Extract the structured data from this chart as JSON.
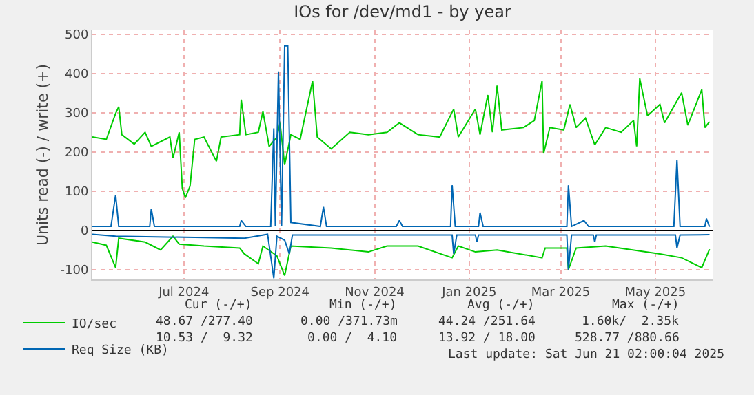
{
  "chart_data": {
    "type": "line",
    "title": "IOs for /dev/md1 - by year",
    "ylabel": "Units read (-) / write (+)",
    "xlim": [
      "2024-05-18",
      "2025-06-22"
    ],
    "xticks": [
      {
        "value": "2024-07-16",
        "label": "Jul 2024"
      },
      {
        "value": "2024-09-16",
        "label": "Sep 2024"
      },
      {
        "value": "2024-11-16",
        "label": "Nov 2024"
      },
      {
        "value": "2025-01-16",
        "label": "Jan 2025"
      },
      {
        "value": "2025-03-16",
        "label": "Mar 2025"
      },
      {
        "value": "2025-05-16",
        "label": "May 2025"
      }
    ],
    "ylim": [
      -125,
      510
    ],
    "yticks": [
      -100,
      0,
      100,
      200,
      300,
      400,
      500
    ],
    "grid": true,
    "legend": "bottom left",
    "line_style": "solid",
    "series": [
      {
        "name": "IO/sec",
        "color": "#00cc00",
        "x": [
          "2024-05-18",
          "2024-05-27",
          "2024-06-02",
          "2024-06-04",
          "2024-06-06",
          "2024-06-14",
          "2024-06-21",
          "2024-06-25",
          "2024-07-07",
          "2024-07-09",
          "2024-07-13",
          "2024-07-15",
          "2024-07-17",
          "2024-07-20",
          "2024-07-23",
          "2024-07-29",
          "2024-08-06",
          "2024-08-09",
          "2024-08-21",
          "2024-08-22",
          "2024-08-25",
          "2024-09-02",
          "2024-09-05",
          "2024-09-09",
          "2024-09-14",
          "2024-09-16",
          "2024-09-19",
          "2024-09-23",
          "2024-09-29",
          "2024-10-07",
          "2024-10-10",
          "2024-10-19",
          "2024-10-31",
          "2024-11-12",
          "2024-11-24",
          "2024-12-02",
          "2024-12-14",
          "2024-12-28",
          "2025-01-06",
          "2025-01-09",
          "2025-01-20",
          "2025-01-23",
          "2025-01-28",
          "2025-01-31",
          "2025-02-03",
          "2025-02-06",
          "2025-02-20",
          "2025-02-27",
          "2025-03-04",
          "2025-03-05",
          "2025-03-09",
          "2025-03-18",
          "2025-03-22",
          "2025-03-26",
          "2025-04-01",
          "2025-04-07",
          "2025-04-14",
          "2025-04-24",
          "2025-05-02",
          "2025-05-04",
          "2025-05-06",
          "2025-05-11",
          "2025-05-19",
          "2025-05-22",
          "2025-06-02",
          "2025-06-06",
          "2025-06-15",
          "2025-06-17",
          "2025-06-20"
        ],
        "values": [
          238,
          232,
          298,
          315,
          244,
          220,
          250,
          214,
          238,
          184,
          250,
          107,
          83,
          113,
          232,
          238,
          176,
          238,
          244,
          333,
          244,
          250,
          303,
          214,
          238,
          274,
          167,
          244,
          232,
          381,
          238,
          208,
          250,
          244,
          250,
          274,
          244,
          238,
          309,
          238,
          309,
          244,
          345,
          250,
          369,
          256,
          262,
          280,
          381,
          196,
          262,
          256,
          321,
          262,
          286,
          218,
          262,
          250,
          280,
          214,
          387,
          292,
          321,
          274,
          351,
          268,
          359,
          262,
          277
        ]
      },
      {
        "name": null,
        "color": "#00cc00",
        "x": [
          "2024-05-18",
          "2024-05-27",
          "2024-06-02",
          "2024-06-04",
          "2024-06-21",
          "2024-07-01",
          "2024-07-09",
          "2024-07-13",
          "2024-07-29",
          "2024-08-21",
          "2024-08-24",
          "2024-09-02",
          "2024-09-05",
          "2024-09-14",
          "2024-09-19",
          "2024-09-23",
          "2024-10-19",
          "2024-11-12",
          "2024-11-24",
          "2024-12-14",
          "2025-01-05",
          "2025-01-09",
          "2025-01-20",
          "2025-02-03",
          "2025-03-04",
          "2025-03-06",
          "2025-03-20",
          "2025-03-21",
          "2025-03-26",
          "2025-04-14",
          "2025-05-19",
          "2025-06-02",
          "2025-06-15",
          "2025-06-20"
        ],
        "values": [
          -30,
          -38,
          -95,
          -20,
          -30,
          -50,
          -15,
          -35,
          -40,
          -45,
          -60,
          -85,
          -40,
          -65,
          -115,
          -40,
          -45,
          -55,
          -40,
          -40,
          -70,
          -40,
          -55,
          -50,
          -70,
          -45,
          -45,
          -100,
          -45,
          -40,
          -60,
          -70,
          -95,
          -48
        ]
      },
      {
        "name": "Req Size (KB)",
        "color": "#0066b3",
        "x": [
          "2024-05-18",
          "2024-05-30",
          "2024-06-02",
          "2024-06-04",
          "2024-06-24",
          "2024-06-25",
          "2024-06-27",
          "2024-08-21",
          "2024-08-22",
          "2024-08-25",
          "2024-09-10",
          "2024-09-12",
          "2024-09-13",
          "2024-09-15",
          "2024-09-17",
          "2024-09-19",
          "2024-09-21",
          "2024-09-23",
          "2024-10-12",
          "2024-10-14",
          "2024-10-16",
          "2024-11-30",
          "2024-12-02",
          "2024-12-04",
          "2025-01-04",
          "2025-01-05",
          "2025-01-07",
          "2025-01-22",
          "2025-01-23",
          "2025-01-25",
          "2025-03-20",
          "2025-03-21",
          "2025-03-23",
          "2025-03-31",
          "2025-04-03",
          "2025-05-28",
          "2025-05-30",
          "2025-06-01",
          "2025-06-17",
          "2025-06-18",
          "2025-06-20"
        ],
        "values": [
          10,
          10,
          90,
          10,
          10,
          55,
          10,
          10,
          25,
          10,
          10,
          260,
          10,
          405,
          10,
          470,
          470,
          20,
          10,
          60,
          10,
          10,
          25,
          10,
          10,
          115,
          10,
          10,
          45,
          10,
          10,
          115,
          10,
          25,
          10,
          10,
          180,
          10,
          10,
          30,
          9
        ]
      },
      {
        "name": null,
        "color": "#0066b3",
        "x": [
          "2024-05-18",
          "2024-06-02",
          "2024-08-24",
          "2024-09-08",
          "2024-09-12",
          "2024-09-14",
          "2024-09-19",
          "2024-09-22",
          "2024-09-24",
          "2024-11-30",
          "2025-01-05",
          "2025-01-06",
          "2025-01-08",
          "2025-01-20",
          "2025-01-21",
          "2025-01-22",
          "2025-03-20",
          "2025-03-21",
          "2025-03-23",
          "2025-04-06",
          "2025-04-07",
          "2025-04-08",
          "2025-05-29",
          "2025-05-30",
          "2025-06-01",
          "2025-06-20"
        ],
        "values": [
          -10,
          -15,
          -20,
          -10,
          -122,
          -15,
          -25,
          -60,
          -12,
          -12,
          -12,
          -60,
          -12,
          -12,
          -30,
          -12,
          -12,
          -100,
          -12,
          -12,
          -30,
          -12,
          -12,
          -45,
          -12,
          -11
        ]
      }
    ],
    "annotations": [
      "Cur (-/+)",
      "Min (-/+)",
      "Avg (-/+)",
      "Max (-/+)",
      "48.67 /277.40",
      "0.00 /371.73m",
      "44.24 /251.64",
      "1.60k/  2.35k",
      "10.53 /  9.32",
      "0.00 /  4.10",
      "13.92 / 18.00",
      "528.77 /880.66",
      "Last update: Sat Jun 21 02:00:04 2025"
    ]
  }
}
